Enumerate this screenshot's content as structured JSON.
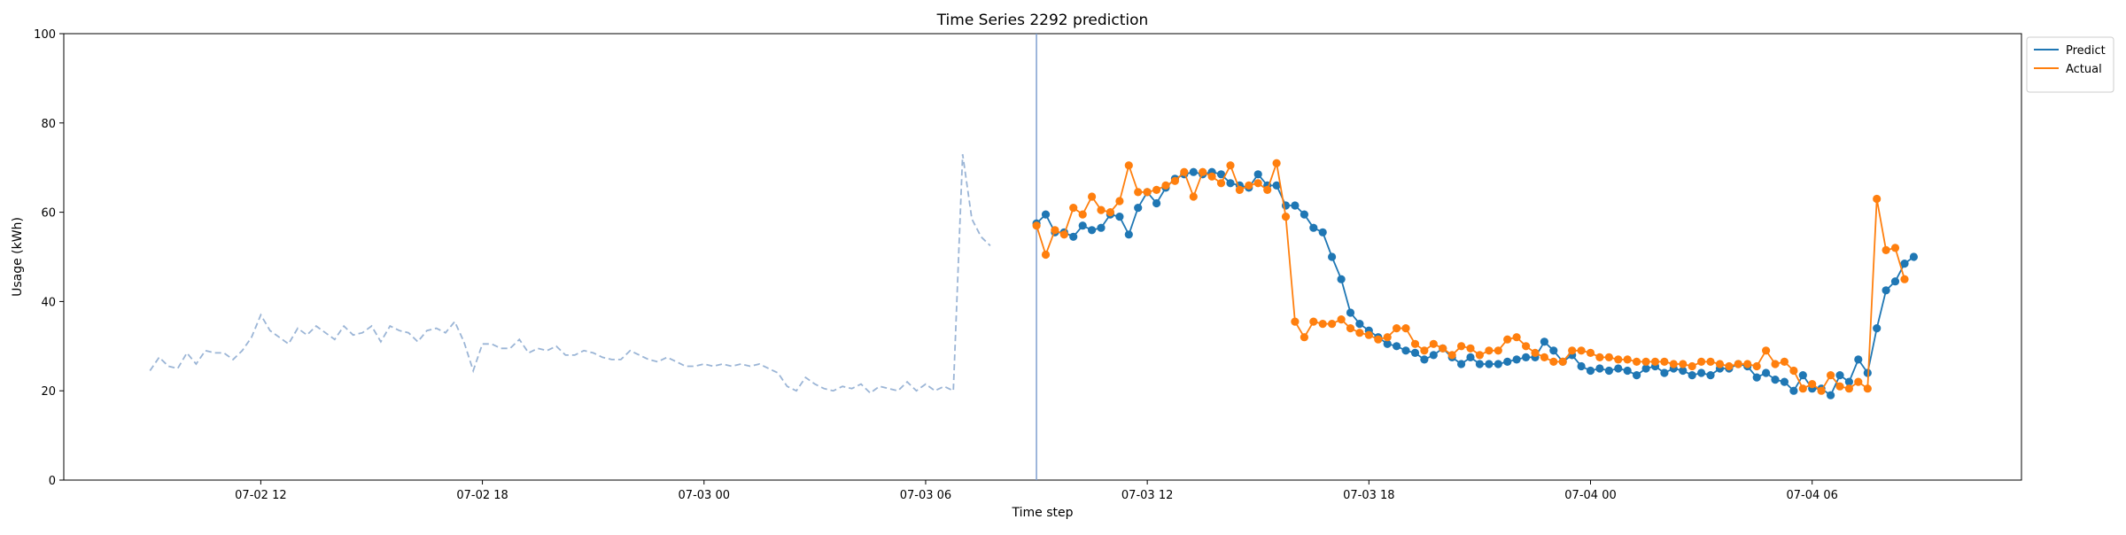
{
  "chart_data": {
    "type": "line",
    "title": "Time Series 2292 prediction",
    "xlabel": "Time step",
    "ylabel": "Usage (kWh)",
    "ylim": [
      0,
      100
    ],
    "xlim": [
      "2025-07-02 06:40",
      "2025-07-04 11:40"
    ],
    "x_tick_labels": [
      "07-02 12",
      "07-02 18",
      "07-03 00",
      "07-03 06",
      "07-03 12",
      "07-03 18",
      "07-04 00",
      "07-04 06"
    ],
    "y_tick_labels": [
      "0",
      "20",
      "40",
      "60",
      "80",
      "100"
    ],
    "grid": false,
    "legend_position": "outside-top-right",
    "vline_x": "2025-07-03 09:00",
    "history": {
      "style": "dashed",
      "color": "#9bb5d6",
      "start": "2025-07-02 09:00",
      "interval_minutes": 15,
      "values": [
        24.5,
        27.5,
        25.5,
        25.0,
        28.5,
        26.0,
        29.0,
        28.5,
        28.5,
        27.0,
        29.0,
        32.0,
        37.0,
        33.5,
        32.0,
        30.5,
        34.0,
        32.5,
        34.5,
        33.0,
        31.5,
        34.5,
        32.5,
        33.0,
        34.5,
        31.0,
        34.5,
        33.5,
        33.0,
        31.0,
        33.5,
        34.0,
        33.0,
        35.5,
        31.0,
        24.5,
        30.5,
        30.5,
        29.5,
        29.5,
        31.5,
        28.5,
        29.5,
        29.0,
        30.0,
        28.0,
        28.0,
        29.0,
        28.5,
        27.5,
        27.0,
        27.0,
        29.0,
        28.0,
        27.0,
        26.5,
        27.5,
        26.5,
        25.5,
        25.5,
        26.0,
        25.5,
        26.0,
        25.5,
        26.0,
        25.5,
        26.0,
        25.0,
        24.0,
        21.0,
        20.0,
        23.0,
        21.5,
        20.5,
        20.0,
        21.0,
        20.5,
        21.5,
        19.5,
        21.0,
        20.5,
        20.0,
        22.0,
        20.0,
        21.5,
        20.0,
        21.0,
        20.0,
        73.0,
        58.5,
        54.5,
        52.5
      ]
    },
    "series": [
      {
        "name": "Predict",
        "color": "#1f77b4",
        "start": "2025-07-03 09:00",
        "interval_minutes": 15,
        "values": [
          57.5,
          59.5,
          55.5,
          55.5,
          54.5,
          57.0,
          56.0,
          56.5,
          59.5,
          59.0,
          55.0,
          61.0,
          64.5,
          62.0,
          65.5,
          67.5,
          68.5,
          69.0,
          68.5,
          69.0,
          68.5,
          66.5,
          66.0,
          65.5,
          68.5,
          66.0,
          66.0,
          61.5,
          61.5,
          59.5,
          56.5,
          55.5,
          50.0,
          45.0,
          37.5,
          35.0,
          33.5,
          32.0,
          30.5,
          30.0,
          29.0,
          28.5,
          27.0,
          28.0,
          29.5,
          27.5,
          26.0,
          27.5,
          26.0,
          26.0,
          26.0,
          26.5,
          27.0,
          27.5,
          27.5,
          31.0,
          29.0,
          26.5,
          28.0,
          25.5,
          24.5,
          25.0,
          24.5,
          25.0,
          24.5,
          23.5,
          25.0,
          25.5,
          24.0,
          25.0,
          24.5,
          23.5,
          24.0,
          23.5,
          25.0,
          25.0,
          26.0,
          25.5,
          23.0,
          24.0,
          22.5,
          22.0,
          20.0,
          23.5,
          20.5,
          20.5,
          19.0,
          23.5,
          22.0,
          27.0,
          24.0,
          34.0,
          42.5,
          44.5,
          48.5,
          50.0
        ]
      },
      {
        "name": "Actual",
        "color": "#ff7f0e",
        "start": "2025-07-03 09:00",
        "interval_minutes": 15,
        "values": [
          57.0,
          50.5,
          56.0,
          55.0,
          61.0,
          59.5,
          63.5,
          60.5,
          60.0,
          62.5,
          70.5,
          64.5,
          64.5,
          65.0,
          66.0,
          67.0,
          69.0,
          63.5,
          69.0,
          68.0,
          66.5,
          70.5,
          65.0,
          66.0,
          66.5,
          65.0,
          71.0,
          59.0,
          35.5,
          32.0,
          35.5,
          35.0,
          35.0,
          36.0,
          34.0,
          33.0,
          32.5,
          31.5,
          32.0,
          34.0,
          34.0,
          30.5,
          29.0,
          30.5,
          29.5,
          28.0,
          30.0,
          29.5,
          28.0,
          29.0,
          29.0,
          31.5,
          32.0,
          30.0,
          28.5,
          27.5,
          26.5,
          26.5,
          29.0,
          29.0,
          28.5,
          27.5,
          27.5,
          27.0,
          27.0,
          26.5,
          26.5,
          26.5,
          26.5,
          26.0,
          26.0,
          25.5,
          26.5,
          26.5,
          26.0,
          25.5,
          26.0,
          26.0,
          25.5,
          29.0,
          26.0,
          26.5,
          24.5,
          20.5,
          21.5,
          20.0,
          23.5,
          21.0,
          20.5,
          22.0,
          20.5,
          63.0,
          51.5,
          52.0,
          45.0
        ]
      }
    ]
  }
}
